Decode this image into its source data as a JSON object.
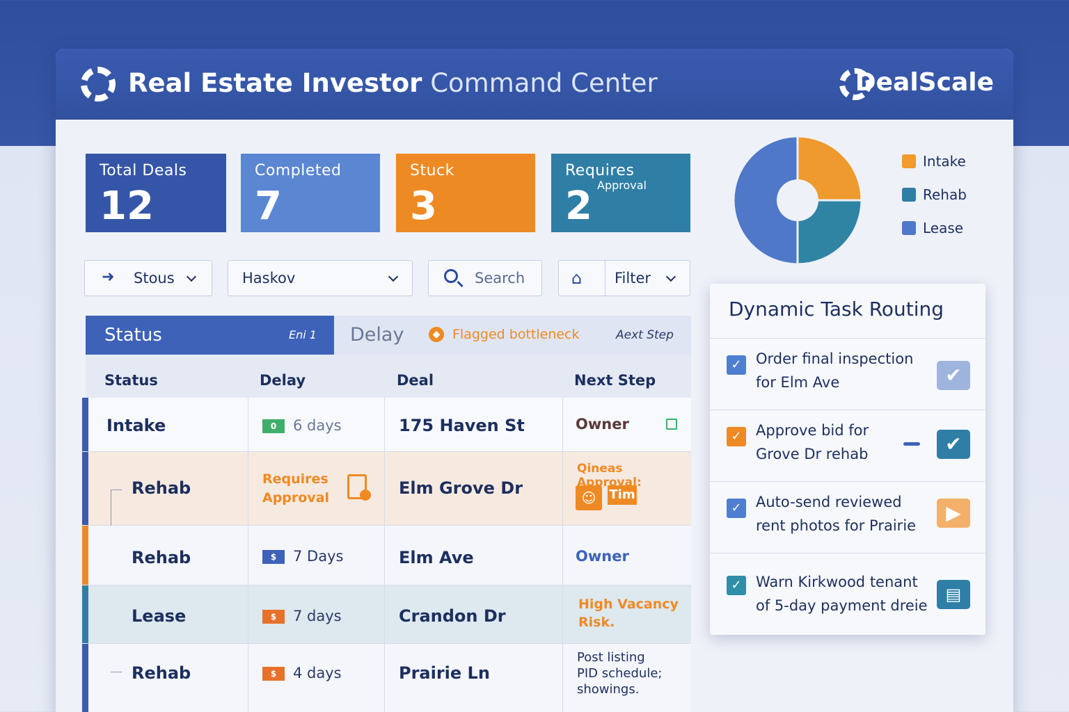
{
  "header": {
    "title_bold": "Real Estate Investor",
    "title_light": "Command Center",
    "brand": "DealScale"
  },
  "kpis": [
    {
      "label": "Total Deals",
      "value": "12",
      "color": "#3556a8"
    },
    {
      "label": "Completed",
      "value": "7",
      "color": "#5a86d2"
    },
    {
      "label": "Stuck",
      "value": "3",
      "color": "#ee8a24"
    },
    {
      "label": "Requires",
      "sub": "Approval",
      "value": "2",
      "color": "#2f7ea6"
    }
  ],
  "filters": {
    "status": "Stous",
    "owner": "Haskov",
    "search_placeholder": "Search",
    "filter": "Filter"
  },
  "tabs": {
    "active": "Status",
    "active_badge": "Eni 1",
    "delay": "Delay",
    "flag": "Flagged bottleneck",
    "next": "Aext Step"
  },
  "table": {
    "headers": [
      "Status",
      "Delay",
      "Deal",
      "Next Step"
    ],
    "rows": [
      {
        "stage": "Intake",
        "chip": "0",
        "delay": "6 days",
        "deal": "175 Haven St",
        "next": "Owner",
        "accent": "#3a5bb0",
        "chip_color": "#3fae6a"
      },
      {
        "stage": "Rehab",
        "delay_l1": "Requires",
        "delay_l2": "Approval",
        "deal": "Elm Grove Dr",
        "next": "Qineas Approval:",
        "next_tag": "Tim",
        "accent": "#3a5bb0"
      },
      {
        "stage": "Rehab",
        "chip": "$",
        "delay": "7 Days",
        "deal": "Elm Ave",
        "next": "Owner",
        "accent": "#ee8a24",
        "chip_color": "#3d62b8"
      },
      {
        "stage": "Lease",
        "chip": "$",
        "delay": "7 days",
        "deal": "Crandon Dr",
        "next_l1": "High Vacancy",
        "next_l2": "Risk.",
        "accent": "#2f7ea6",
        "chip_color": "#e8702a"
      },
      {
        "stage": "Rehab",
        "chip": "$",
        "delay": "4 days",
        "deal": "Prairie Ln",
        "next_l1": "Post listing",
        "next_l2": "PID schedule;",
        "next_l3": "showings.",
        "accent": "#3a5bb0",
        "chip_color": "#e8702a"
      }
    ]
  },
  "chart_data": {
    "type": "pie",
    "donut": true,
    "categories": [
      "Intake",
      "Rehab",
      "Lease"
    ],
    "values": [
      25,
      25,
      50
    ],
    "colors": [
      "#ef9a2e",
      "#2f84a4",
      "#4f78c8"
    ]
  },
  "legend": [
    {
      "label": "Intake",
      "color": "#f39a2c"
    },
    {
      "label": "Rehab",
      "color": "#2f7ea6"
    },
    {
      "label": "Lease",
      "color": "#4f78c8"
    }
  ],
  "routing": {
    "title": "Dynamic Task Routing",
    "tasks": [
      {
        "l1": "Order final inspection",
        "l2": "for Elm Ave",
        "cb_color": "#4f7fd0",
        "act_color": "#9fb4dc",
        "icon": "check-icon"
      },
      {
        "l1": "Approve bid for",
        "l2": "Grove Dr rehab",
        "cb_color": "#ee8a24",
        "act_color": "#2f7ea6",
        "icon": "check-icon"
      },
      {
        "l1": "Auto-send reviewed",
        "l2": "rent photos for Prairie",
        "cb_color": "#4f7fd0",
        "act_color": "#f3b06b",
        "icon": "play-icon"
      },
      {
        "l1": "Warn Kirkwood tenant",
        "l2": "of 5-day payment dreie",
        "cb_color": "#2f8fa8",
        "act_color": "#2f7ea6",
        "icon": "message-icon"
      }
    ]
  }
}
